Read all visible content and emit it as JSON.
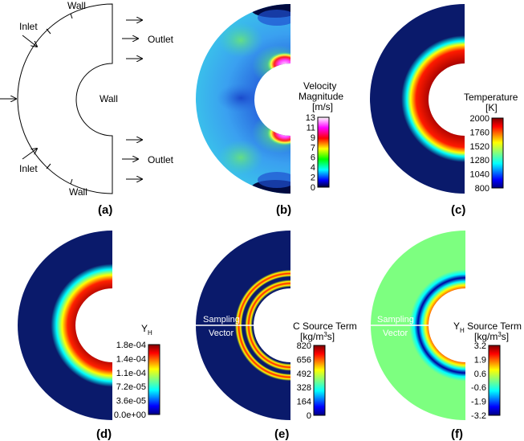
{
  "panels": {
    "a": {
      "caption": "(a)",
      "labels": {
        "wall_top": "Wall",
        "wall_inner": "Wall",
        "wall_bottom": "Wall",
        "inlet_top": "Inlet",
        "inlet_bottom": "Inlet",
        "outlet_top": "Outlet",
        "outlet_bottom": "Outlet"
      }
    },
    "b": {
      "caption": "(b)",
      "title": [
        "Velocity",
        "Magnitude",
        "[m/s]"
      ],
      "ticks": [
        "13",
        "11",
        "9",
        "7",
        "6",
        "4",
        "2",
        "0"
      ]
    },
    "c": {
      "caption": "(c)",
      "title": [
        "Temperature",
        "[K]"
      ],
      "ticks": [
        "2000",
        "1760",
        "1520",
        "1280",
        "1040",
        "800"
      ]
    },
    "d": {
      "caption": "(d)",
      "title": [
        "Y",
        "H"
      ],
      "ticks": [
        "1.8e-04",
        "1.4e-04",
        "1.1e-04",
        "7.2e-05",
        "3.6e-05",
        "0.0e+00"
      ]
    },
    "e": {
      "caption": "(e)",
      "title": [
        "C Source Term",
        "[kg/m",
        "3",
        "s]"
      ],
      "sampling": [
        "Sampling",
        "Vector"
      ],
      "ticks": [
        "820",
        "656",
        "492",
        "328",
        "164",
        "0"
      ]
    },
    "f": {
      "caption": "(f)",
      "title": [
        "Y",
        "H",
        " Source Term",
        "[kg/m",
        "3",
        "s]"
      ],
      "sampling": [
        "Sampling",
        "Vector"
      ],
      "ticks": [
        "3.2",
        "1.9",
        "0.6",
        "-0.6",
        "-1.9",
        "-3.2"
      ]
    }
  },
  "colors": {
    "field_dark": "#0a1a6b",
    "field_green": "#7dff80",
    "field_cyan": "#3ad0e8"
  }
}
